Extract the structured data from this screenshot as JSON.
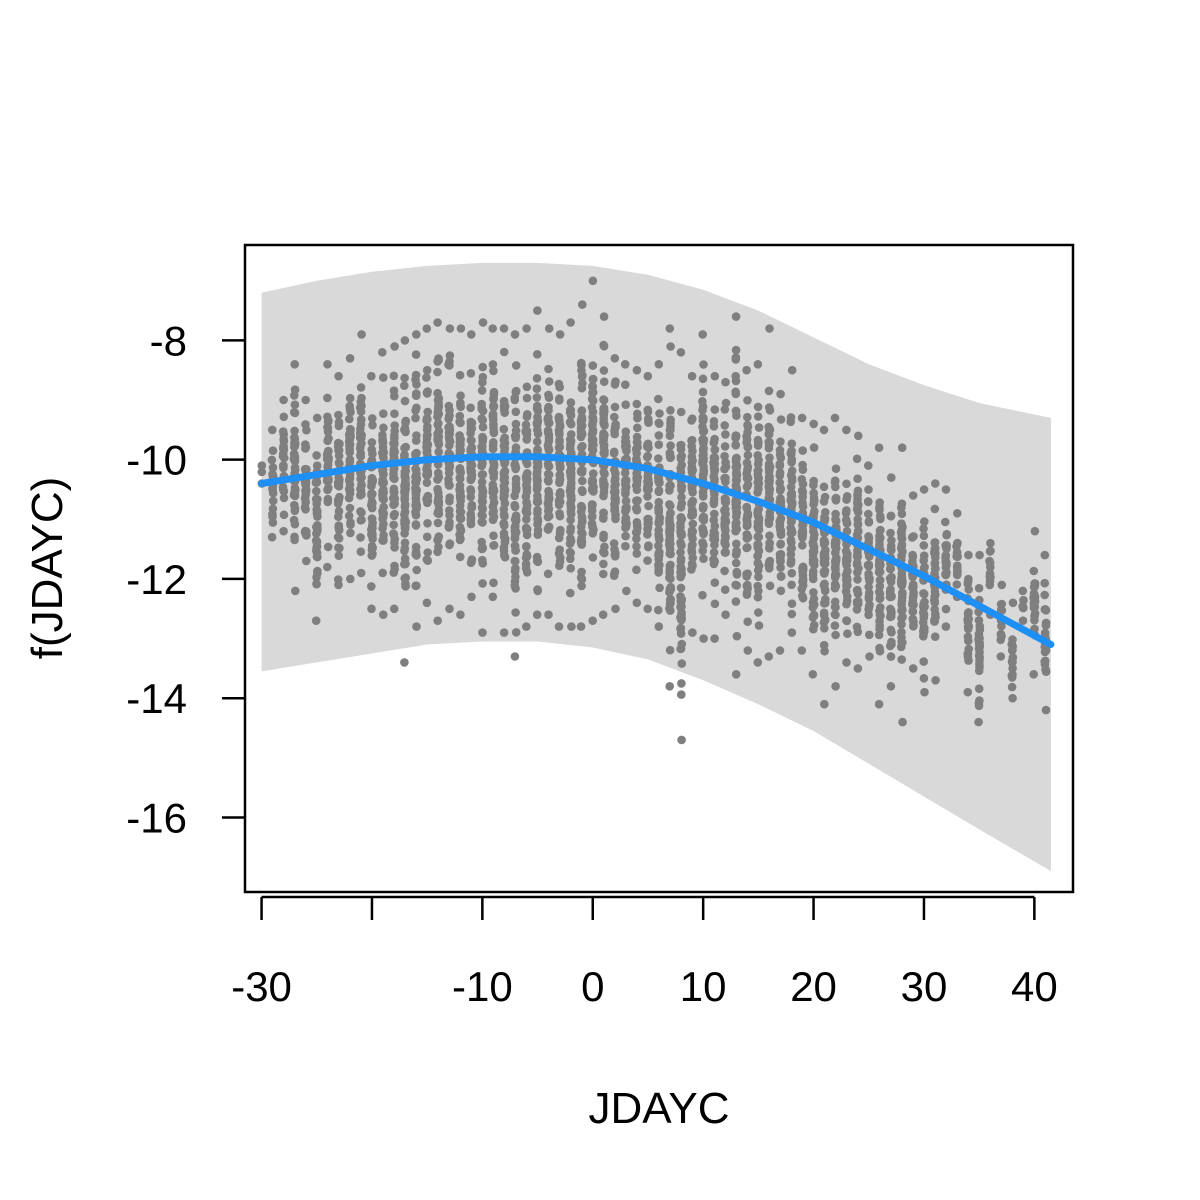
{
  "chart_data": {
    "type": "scatter",
    "title": "",
    "xlabel": "JDAYC",
    "ylabel": "f(JDAYC)",
    "xlim": [
      -31.5,
      43.5
    ],
    "ylim": [
      -17.25,
      -6.4
    ],
    "x_ticks": [
      -30,
      -20,
      -10,
      0,
      10,
      20,
      30,
      40
    ],
    "x_tick_labels": [
      "-30",
      "",
      "-10",
      "0",
      "10",
      "20",
      "30",
      "40"
    ],
    "y_ticks": [
      -16,
      -14,
      -12,
      -10,
      -8
    ],
    "y_tick_labels": [
      "-16",
      "-14",
      "-12",
      "-10",
      "-8"
    ],
    "grid": false,
    "legend": "none",
    "colors": {
      "points": "#7f7f7f",
      "smooth_line": "#1e8ff5",
      "confidence_band": "#d9d9d9"
    },
    "smooth": {
      "x": [
        -30,
        -25,
        -20,
        -15,
        -10,
        -5,
        0,
        5,
        10,
        15,
        20,
        25,
        30,
        35,
        41.5
      ],
      "y": [
        -10.4,
        -10.25,
        -10.1,
        -10.0,
        -9.95,
        -9.95,
        -10.0,
        -10.15,
        -10.4,
        -10.7,
        -11.05,
        -11.5,
        -11.95,
        -12.45,
        -13.1
      ]
    },
    "band": {
      "x": [
        -30,
        -25,
        -20,
        -15,
        -10,
        -5,
        0,
        5,
        10,
        15,
        20,
        25,
        30,
        35,
        41.5
      ],
      "upper": [
        -7.2,
        -7.0,
        -6.85,
        -6.75,
        -6.7,
        -6.7,
        -6.75,
        -6.9,
        -7.15,
        -7.5,
        -7.95,
        -8.4,
        -8.75,
        -9.05,
        -9.3
      ],
      "lower": [
        -13.55,
        -13.4,
        -13.25,
        -13.1,
        -13.05,
        -13.05,
        -13.15,
        -13.35,
        -13.7,
        -14.1,
        -14.55,
        -15.1,
        -15.65,
        -16.2,
        -16.9
      ]
    },
    "points": {
      "x": [
        -30,
        -29,
        -28,
        -27,
        -26,
        -25,
        -24,
        -23,
        -22,
        -21,
        -20,
        -19,
        -18,
        -17,
        -16,
        -15,
        -14,
        -13,
        -12,
        -11,
        -10,
        -9,
        -8,
        -7,
        -6,
        -5,
        -4,
        -3,
        -2,
        -1,
        0,
        1,
        2,
        3,
        4,
        5,
        6,
        7,
        8,
        9,
        10,
        11,
        12,
        13,
        14,
        15,
        16,
        17,
        18,
        19,
        20,
        21,
        22,
        23,
        24,
        25,
        26,
        27,
        28,
        29,
        30,
        31,
        32,
        33,
        34,
        35,
        36,
        37,
        38,
        39,
        40,
        41
      ],
      "y_min": [
        -10.4,
        -11.3,
        -11.2,
        -12.2,
        -11.7,
        -12.7,
        -11.8,
        -12.1,
        -12.0,
        -11.9,
        -12.5,
        -12.6,
        -12.5,
        -13.4,
        -12.8,
        -12.4,
        -12.7,
        -12.5,
        -12.6,
        -12.3,
        -12.9,
        -12.3,
        -12.9,
        -13.3,
        -12.8,
        -12.6,
        -12.6,
        -12.8,
        -12.8,
        -12.8,
        -12.7,
        -12.6,
        -12.5,
        -12.2,
        -12.4,
        -12.5,
        -12.8,
        -13.8,
        -14.7,
        -12.9,
        -13.0,
        -13.0,
        -12.6,
        -13.6,
        -13.2,
        -13.4,
        -13.3,
        -13.2,
        -12.9,
        -13.2,
        -13.6,
        -14.1,
        -13.8,
        -13.4,
        -13.5,
        -13.3,
        -14.1,
        -13.8,
        -14.4,
        -13.5,
        -13.9,
        -13.7,
        -12.8,
        -12.3,
        -13.9,
        -14.4,
        -12.6,
        -13.3,
        -14.0,
        -12.7,
        -13.6,
        -14.2
      ],
      "y_max": [
        -10.1,
        -9.5,
        -9.0,
        -8.4,
        -9.0,
        -9.3,
        -8.4,
        -8.6,
        -8.3,
        -7.9,
        -8.6,
        -8.2,
        -8.1,
        -8.0,
        -7.9,
        -7.8,
        -7.7,
        -7.8,
        -7.8,
        -7.9,
        -7.7,
        -7.8,
        -7.8,
        -7.9,
        -7.8,
        -7.5,
        -7.8,
        -7.9,
        -7.7,
        -7.4,
        -7.0,
        -7.6,
        -8.3,
        -8.4,
        -8.5,
        -8.6,
        -8.4,
        -7.8,
        -8.2,
        -8.6,
        -7.9,
        -8.6,
        -8.7,
        -7.6,
        -8.5,
        -8.4,
        -7.8,
        -8.9,
        -8.5,
        -9.3,
        -9.4,
        -9.5,
        -9.3,
        -9.5,
        -9.6,
        -10.1,
        -9.8,
        -10.3,
        -9.8,
        -10.6,
        -10.5,
        -10.4,
        -10.5,
        -10.9,
        -11.6,
        -11.6,
        -11.4,
        -12.1,
        -12.4,
        -12.2,
        -11.2,
        -11.6
      ]
    }
  }
}
